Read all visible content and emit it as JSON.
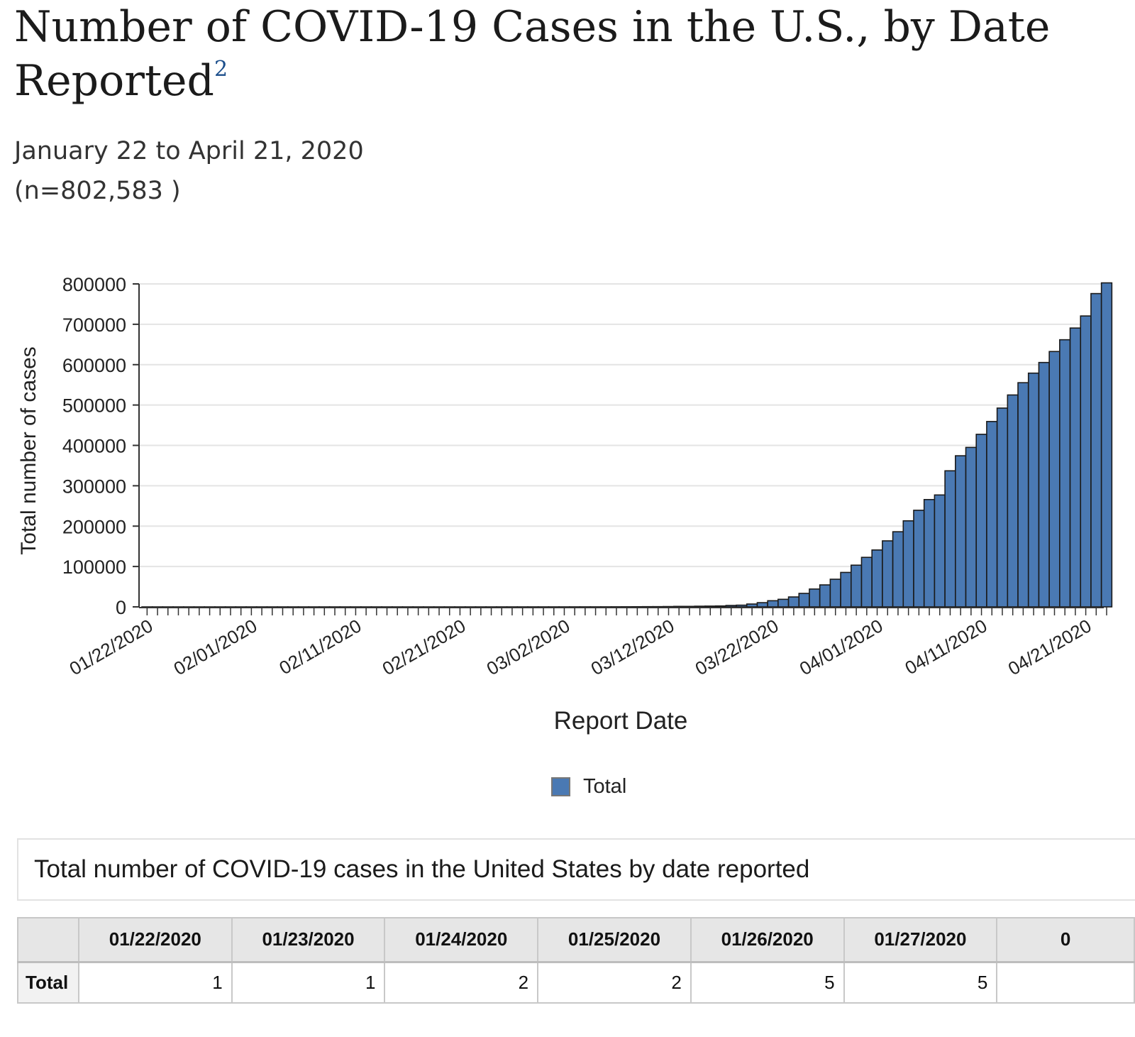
{
  "page": {
    "title": "Number of COVID-19 Cases in the U.S., by Date Reported",
    "title_footnote": "2",
    "date_range": "January 22 to April 21, 2020",
    "n_label": "(n=802,583 )",
    "table_caption": "Total number of COVID-19 cases in the United States by date reported"
  },
  "chart_data": {
    "type": "bar",
    "xlabel": "Report Date",
    "ylabel": "Total number of cases",
    "ylim": [
      0,
      800000
    ],
    "yticks": [
      "0",
      "100000",
      "200000",
      "300000",
      "400000",
      "500000",
      "600000",
      "700000",
      "800000"
    ],
    "xtick_labels": [
      "01/22/2020",
      "02/01/2020",
      "02/11/2020",
      "02/21/2020",
      "03/02/2020",
      "03/12/2020",
      "03/22/2020",
      "04/01/2020",
      "04/11/2020",
      "04/21/2020"
    ],
    "grid": true,
    "legend_position": "bottom",
    "bar_color": "#4a79b3",
    "start_date": "01/22/2020",
    "series": [
      {
        "name": "Total",
        "values": [
          1,
          1,
          2,
          2,
          5,
          5,
          5,
          5,
          5,
          6,
          7,
          8,
          11,
          11,
          11,
          12,
          12,
          12,
          12,
          12,
          13,
          13,
          14,
          15,
          15,
          15,
          15,
          15,
          15,
          15,
          15,
          15,
          15,
          15,
          35,
          35,
          35,
          53,
          57,
          60,
          60,
          89,
          105,
          121,
          153,
          221,
          278,
          417,
          537,
          605,
          829,
          1219,
          1215,
          1629,
          1896,
          2234,
          3487,
          4226,
          7038,
          10442,
          15219,
          18747,
          24583,
          33404,
          44183,
          54453,
          68440,
          85356,
          103321,
          122653,
          140904,
          163539,
          186101,
          213144,
          239279,
          265852,
          277205,
          337072,
          374329,
          395011,
          427460,
          459165,
          492416,
          524903,
          555313,
          579005,
          605390,
          632548,
          661712,
          690714,
          720630,
          776093,
          802583
        ]
      }
    ]
  },
  "table": {
    "row_header": "Total",
    "columns": [
      "01/22/2020",
      "01/23/2020",
      "01/24/2020",
      "01/25/2020",
      "01/26/2020",
      "01/27/2020",
      "0"
    ],
    "values": [
      "1",
      "1",
      "2",
      "2",
      "5",
      "5",
      ""
    ]
  }
}
